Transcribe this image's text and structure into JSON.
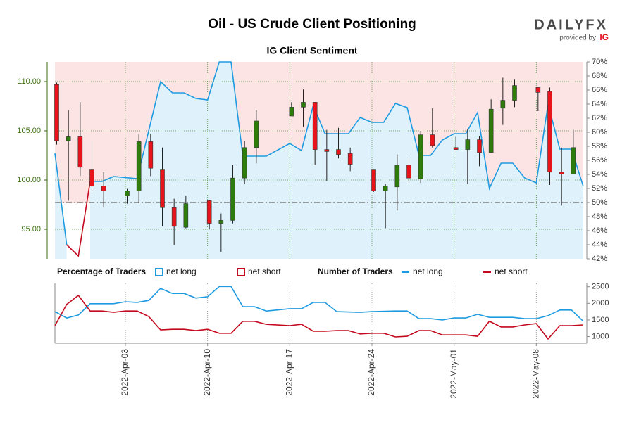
{
  "logo": {
    "brand": "DAILYFX",
    "provided_by": "provided by",
    "ig": "IG"
  },
  "chart_data": [
    {
      "type": "candlestick",
      "title": "Oil - US Crude Client Positioning",
      "subtitle": "IG Client Sentiment",
      "legend_title": "Percentage of Traders",
      "xlim": [
        "2022-03-28",
        "2022-05-12"
      ],
      "x": [
        "2022-03-28",
        "2022-03-29",
        "2022-03-30",
        "2022-03-31",
        "2022-04-01",
        "2022-04-03",
        "2022-04-04",
        "2022-04-05",
        "2022-04-06",
        "2022-04-07",
        "2022-04-08",
        "2022-04-10",
        "2022-04-11",
        "2022-04-12",
        "2022-04-13",
        "2022-04-14",
        "2022-04-17",
        "2022-04-18",
        "2022-04-19",
        "2022-04-20",
        "2022-04-21",
        "2022-04-22",
        "2022-04-24",
        "2022-04-25",
        "2022-04-26",
        "2022-04-27",
        "2022-04-28",
        "2022-04-29",
        "2022-05-01",
        "2022-05-02",
        "2022-05-03",
        "2022-05-04",
        "2022-05-05",
        "2022-05-06",
        "2022-05-08",
        "2022-05-09",
        "2022-05-10",
        "2022-05-11"
      ],
      "open": [
        109.7,
        104.0,
        104.4,
        101.1,
        99.4,
        98.4,
        98.9,
        103.9,
        101.1,
        97.2,
        95.2,
        97.9,
        95.6,
        95.9,
        100.2,
        103.3,
        106.5,
        107.4,
        107.9,
        103.1,
        103.1,
        102.7,
        101.1,
        98.9,
        99.3,
        101.5,
        100.1,
        104.6,
        103.3,
        103.1,
        104.1,
        102.8,
        107.3,
        108.1,
        109.4,
        109.0,
        100.8,
        100.6
      ],
      "high": [
        109.9,
        107.1,
        107.9,
        104.0,
        100.8,
        99.1,
        104.7,
        104.7,
        103.3,
        98.1,
        98.4,
        98.0,
        96.6,
        101.5,
        104.0,
        107.1,
        107.9,
        109.2,
        107.9,
        105.1,
        105.3,
        103.3,
        101.1,
        99.6,
        102.6,
        102.4,
        105.0,
        107.3,
        104.4,
        105.2,
        104.5,
        108.2,
        110.4,
        110.2,
        109.4,
        109.4,
        103.3,
        105.1
      ],
      "low": [
        103.6,
        97.9,
        100.4,
        98.6,
        97.2,
        97.6,
        97.7,
        100.4,
        95.3,
        93.4,
        95.1,
        95.0,
        92.7,
        95.6,
        99.6,
        101.7,
        106.5,
        105.4,
        101.5,
        99.9,
        102.2,
        100.9,
        98.8,
        95.1,
        96.9,
        99.6,
        99.7,
        103.3,
        103.1,
        99.6,
        101.4,
        102.8,
        105.6,
        107.4,
        107.0,
        99.5,
        97.4,
        100.6
      ],
      "close": [
        104.0,
        104.4,
        101.3,
        99.4,
        98.9,
        98.9,
        103.9,
        101.2,
        97.2,
        95.3,
        97.6,
        95.6,
        95.9,
        100.2,
        103.3,
        106.0,
        107.4,
        107.9,
        103.1,
        102.9,
        102.6,
        101.6,
        98.9,
        99.4,
        101.5,
        100.2,
        104.6,
        103.5,
        103.1,
        104.1,
        102.8,
        107.2,
        108.1,
        109.6,
        108.9,
        100.8,
        100.6,
        103.3
      ],
      "up_color": "#2e7d0c",
      "down_color": "#e8131b",
      "ylim": [
        92,
        112
      ],
      "yticks": [
        {
          "value": 95,
          "label": "95.00"
        },
        {
          "value": 100,
          "label": "100.00"
        },
        {
          "value": 105,
          "label": "105.00"
        },
        {
          "value": 110,
          "label": "110.00"
        }
      ],
      "y2lim": [
        42,
        70
      ],
      "y2ticks": [
        {
          "value": 42,
          "label": "42%"
        },
        {
          "value": 44,
          "label": "44%"
        },
        {
          "value": 46,
          "label": "46%"
        },
        {
          "value": 48,
          "label": "48%"
        },
        {
          "value": 50,
          "label": "50%"
        },
        {
          "value": 52,
          "label": "52%"
        },
        {
          "value": 54,
          "label": "54%"
        },
        {
          "value": 56,
          "label": "56%"
        },
        {
          "value": 58,
          "label": "58%"
        },
        {
          "value": 60,
          "label": "60%"
        },
        {
          "value": 62,
          "label": "62%"
        },
        {
          "value": 64,
          "label": "64%"
        },
        {
          "value": 66,
          "label": "66%"
        },
        {
          "value": 68,
          "label": "68%"
        },
        {
          "value": 70,
          "label": "70%"
        }
      ],
      "y2_reference": 50,
      "series": [
        {
          "name": "net long",
          "color": "#1e9be0",
          "axis": "y2",
          "x": [
            "2022-03-28",
            "2022-03-29",
            "2022-03-30",
            "2022-03-31",
            "2022-04-01",
            "2022-04-02",
            "2022-04-04",
            "2022-04-06",
            "2022-04-07",
            "2022-04-08",
            "2022-04-09",
            "2022-04-10",
            "2022-04-11",
            "2022-04-12",
            "2022-04-13",
            "2022-04-15",
            "2022-04-17",
            "2022-04-18",
            "2022-04-19",
            "2022-04-20",
            "2022-04-22",
            "2022-04-23",
            "2022-04-24",
            "2022-04-25",
            "2022-04-26",
            "2022-04-27",
            "2022-04-28",
            "2022-04-29",
            "2022-04-30",
            "2022-05-01",
            "2022-05-02",
            "2022-05-03",
            "2022-05-04",
            "2022-05-05",
            "2022-05-06",
            "2022-05-07",
            "2022-05-08",
            "2022-05-09",
            "2022-05-10",
            "2022-05-11",
            "2022-05-12"
          ],
          "values": [
            57.0,
            44.0,
            null,
            53.0,
            53.0,
            53.7,
            53.4,
            67.2,
            65.6,
            65.6,
            64.8,
            64.6,
            70.0,
            70.0,
            56.6,
            56.6,
            58.4,
            57.4,
            63.8,
            59.8,
            59.8,
            62.1,
            61.4,
            61.4,
            64.1,
            63.5,
            56.7,
            56.7,
            58.9,
            59.8,
            59.8,
            62.8,
            52.0,
            55.6,
            55.6,
            53.5,
            52.8,
            64.0,
            57.6,
            57.6,
            52.3
          ]
        },
        {
          "name": "net short",
          "color": "#c4081e",
          "axis": "y2",
          "x": [
            "2022-03-29",
            "2022-03-30",
            "2022-03-31"
          ],
          "values": [
            44.0,
            42.4,
            53.0
          ]
        }
      ]
    },
    {
      "type": "line",
      "legend_title": "Number of Traders",
      "xlim": [
        "2022-03-28",
        "2022-05-12"
      ],
      "xticks": [
        {
          "value": "2022-04-03",
          "label": "2022-Apr-03"
        },
        {
          "value": "2022-04-10",
          "label": "2022-Apr-10"
        },
        {
          "value": "2022-04-17",
          "label": "2022-Apr-17"
        },
        {
          "value": "2022-04-24",
          "label": "2022-Apr-24"
        },
        {
          "value": "2022-05-01",
          "label": "2022-May-01"
        },
        {
          "value": "2022-05-08",
          "label": "2022-May-08"
        }
      ],
      "ylim": [
        800,
        2600
      ],
      "yticks": [
        1000,
        1500,
        2000,
        2500
      ],
      "series": [
        {
          "name": "net long",
          "color": "#1e9be0",
          "x": [
            "2022-03-28",
            "2022-03-29",
            "2022-03-30",
            "2022-03-31",
            "2022-04-02",
            "2022-04-03",
            "2022-04-04",
            "2022-04-05",
            "2022-04-06",
            "2022-04-07",
            "2022-04-08",
            "2022-04-09",
            "2022-04-10",
            "2022-04-11",
            "2022-04-12",
            "2022-04-13",
            "2022-04-14",
            "2022-04-15",
            "2022-04-17",
            "2022-04-18",
            "2022-04-19",
            "2022-04-20",
            "2022-04-21",
            "2022-04-23",
            "2022-04-24",
            "2022-04-26",
            "2022-04-27",
            "2022-04-28",
            "2022-04-29",
            "2022-04-30",
            "2022-05-01",
            "2022-05-02",
            "2022-05-03",
            "2022-05-04",
            "2022-05-06",
            "2022-05-07",
            "2022-05-08",
            "2022-05-09",
            "2022-05-10",
            "2022-05-11",
            "2022-05-12"
          ],
          "values": [
            1750,
            1560,
            1650,
            1990,
            1990,
            2050,
            2030,
            2090,
            2450,
            2300,
            2300,
            2160,
            2200,
            2510,
            2510,
            1900,
            1900,
            1770,
            1840,
            1840,
            2030,
            2030,
            1750,
            1730,
            1750,
            1770,
            1770,
            1540,
            1540,
            1500,
            1560,
            1560,
            1670,
            1580,
            1580,
            1540,
            1540,
            1630,
            1800,
            1800,
            1460
          ]
        },
        {
          "name": "net short",
          "color": "#c4081e",
          "x": [
            "2022-03-28",
            "2022-03-29",
            "2022-03-30",
            "2022-03-31",
            "2022-04-01",
            "2022-04-02",
            "2022-04-03",
            "2022-04-04",
            "2022-04-05",
            "2022-04-06",
            "2022-04-07",
            "2022-04-08",
            "2022-04-09",
            "2022-04-10",
            "2022-04-11",
            "2022-04-12",
            "2022-04-13",
            "2022-04-14",
            "2022-04-15",
            "2022-04-17",
            "2022-04-18",
            "2022-04-19",
            "2022-04-20",
            "2022-04-21",
            "2022-04-22",
            "2022-04-23",
            "2022-04-24",
            "2022-04-25",
            "2022-04-26",
            "2022-04-27",
            "2022-04-28",
            "2022-04-29",
            "2022-04-30",
            "2022-05-02",
            "2022-05-03",
            "2022-05-04",
            "2022-05-05",
            "2022-05-06",
            "2022-05-07",
            "2022-05-08",
            "2022-05-09",
            "2022-05-10",
            "2022-05-11",
            "2022-05-12"
          ],
          "values": [
            1330,
            1970,
            2240,
            1770,
            1770,
            1730,
            1770,
            1770,
            1600,
            1200,
            1220,
            1220,
            1180,
            1220,
            1100,
            1100,
            1460,
            1460,
            1370,
            1330,
            1370,
            1160,
            1160,
            1180,
            1180,
            1080,
            1100,
            1100,
            990,
            1010,
            1180,
            1180,
            1050,
            1050,
            1010,
            1460,
            1290,
            1290,
            1350,
            1390,
            930,
            1330,
            1330,
            1350
          ]
        }
      ]
    }
  ]
}
